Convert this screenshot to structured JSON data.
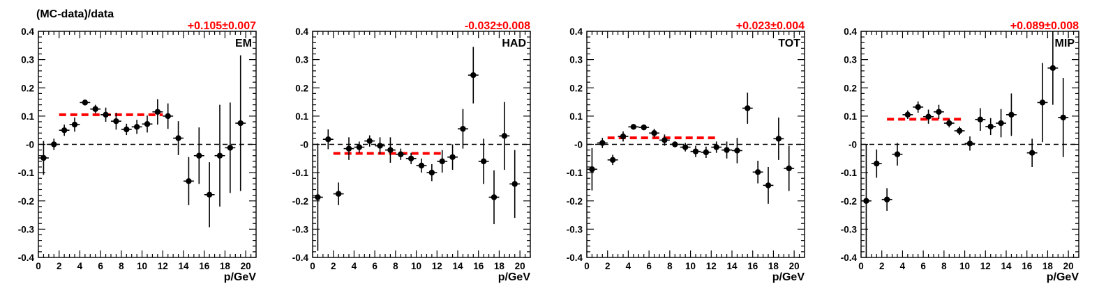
{
  "figure": {
    "ylabel": "(MC-data)/data",
    "xlabel": "p/GeV"
  },
  "chart_data": [
    {
      "type": "scatter",
      "panel_label": "EM",
      "fit_label": "+0.105±0.007",
      "fit": {
        "value": 0.105,
        "x_range": [
          2,
          12
        ]
      },
      "xlim": [
        0,
        21
      ],
      "ylim": [
        -0.4,
        0.4
      ],
      "xticks": [
        0,
        2,
        4,
        6,
        8,
        10,
        12,
        14,
        16,
        18,
        20
      ],
      "yticks": [
        -0.4,
        -0.3,
        -0.2,
        -0.1,
        0,
        0.1,
        0.2,
        0.3,
        0.4
      ],
      "ytick_labels": [
        "-0.4",
        "-0.3",
        "-0.2",
        "-0.1",
        "-0",
        "0.1",
        "0.2",
        "0.3",
        "0.4"
      ],
      "points": [
        {
          "x": 0.5,
          "y": -0.048,
          "err": 0.06
        },
        {
          "x": 1.5,
          "y": 0.0,
          "err": 0.02
        },
        {
          "x": 2.5,
          "y": 0.05,
          "err": 0.02
        },
        {
          "x": 3.5,
          "y": 0.07,
          "err": 0.025
        },
        {
          "x": 4.5,
          "y": 0.148,
          "err": 0.01
        },
        {
          "x": 5.5,
          "y": 0.125,
          "err": 0.015
        },
        {
          "x": 6.5,
          "y": 0.105,
          "err": 0.025
        },
        {
          "x": 7.5,
          "y": 0.082,
          "err": 0.03
        },
        {
          "x": 8.5,
          "y": 0.053,
          "err": 0.02
        },
        {
          "x": 9.5,
          "y": 0.062,
          "err": 0.025
        },
        {
          "x": 10.5,
          "y": 0.072,
          "err": 0.03
        },
        {
          "x": 11.5,
          "y": 0.115,
          "err": 0.045
        },
        {
          "x": 12.5,
          "y": 0.1,
          "err": 0.045
        },
        {
          "x": 13.5,
          "y": 0.022,
          "err": 0.06
        },
        {
          "x": 14.5,
          "y": -0.13,
          "err": 0.085
        },
        {
          "x": 15.5,
          "y": -0.04,
          "err": 0.1
        },
        {
          "x": 16.5,
          "y": -0.178,
          "err": 0.115
        },
        {
          "x": 17.5,
          "y": -0.04,
          "err": 0.18
        },
        {
          "x": 18.5,
          "y": -0.012,
          "err": 0.16
        },
        {
          "x": 19.5,
          "y": 0.075,
          "err": 0.24
        }
      ]
    },
    {
      "type": "scatter",
      "panel_label": "HAD",
      "fit_label": "-0.032±0.008",
      "fit": {
        "value": -0.032,
        "x_range": [
          2,
          12.5
        ]
      },
      "xlim": [
        0,
        21
      ],
      "ylim": [
        -0.4,
        0.4
      ],
      "xticks": [
        0,
        2,
        4,
        6,
        8,
        10,
        12,
        14,
        16,
        18,
        20
      ],
      "yticks": [
        -0.4,
        -0.3,
        -0.2,
        -0.1,
        0,
        0.1,
        0.2,
        0.3,
        0.4
      ],
      "ytick_labels": [
        "-0.4",
        "-0.3",
        "-0.2",
        "-0.1",
        "-0",
        "0.1",
        "0.2",
        "0.3",
        "0.4"
      ],
      "points": [
        {
          "x": 0.5,
          "y": -0.187,
          "err": 0.19
        },
        {
          "x": 1.5,
          "y": 0.018,
          "err": 0.035
        },
        {
          "x": 2.5,
          "y": -0.175,
          "err": 0.04
        },
        {
          "x": 3.5,
          "y": -0.015,
          "err": 0.04
        },
        {
          "x": 4.5,
          "y": -0.01,
          "err": 0.02
        },
        {
          "x": 5.5,
          "y": 0.012,
          "err": 0.02
        },
        {
          "x": 6.5,
          "y": -0.005,
          "err": 0.03
        },
        {
          "x": 7.5,
          "y": -0.02,
          "err": 0.045
        },
        {
          "x": 8.5,
          "y": -0.035,
          "err": 0.02
        },
        {
          "x": 9.5,
          "y": -0.05,
          "err": 0.02
        },
        {
          "x": 10.5,
          "y": -0.075,
          "err": 0.025
        },
        {
          "x": 11.5,
          "y": -0.1,
          "err": 0.03
        },
        {
          "x": 12.5,
          "y": -0.06,
          "err": 0.04
        },
        {
          "x": 13.5,
          "y": -0.045,
          "err": 0.045
        },
        {
          "x": 14.5,
          "y": 0.055,
          "err": 0.07
        },
        {
          "x": 15.5,
          "y": 0.245,
          "err": 0.1
        },
        {
          "x": 16.5,
          "y": -0.06,
          "err": 0.08
        },
        {
          "x": 17.5,
          "y": -0.187,
          "err": 0.095
        },
        {
          "x": 18.5,
          "y": 0.03,
          "err": 0.12
        },
        {
          "x": 19.5,
          "y": -0.14,
          "err": 0.12
        }
      ]
    },
    {
      "type": "scatter",
      "panel_label": "TOT",
      "fit_label": "+0.023±0.004",
      "fit": {
        "value": 0.023,
        "x_range": [
          2,
          12.5
        ]
      },
      "xlim": [
        0,
        21
      ],
      "ylim": [
        -0.4,
        0.4
      ],
      "xticks": [
        0,
        2,
        4,
        6,
        8,
        10,
        12,
        14,
        16,
        18,
        20
      ],
      "yticks": [
        -0.4,
        -0.3,
        -0.2,
        -0.1,
        0,
        0.1,
        0.2,
        0.3,
        0.4
      ],
      "ytick_labels": [
        "-0.4",
        "-0.3",
        "-0.2",
        "-0.1",
        "-0",
        "0.1",
        "0.2",
        "0.3",
        "0.4"
      ],
      "points": [
        {
          "x": 0.5,
          "y": -0.088,
          "err": 0.075
        },
        {
          "x": 1.5,
          "y": 0.005,
          "err": 0.018
        },
        {
          "x": 2.5,
          "y": -0.055,
          "err": 0.018
        },
        {
          "x": 3.5,
          "y": 0.028,
          "err": 0.018
        },
        {
          "x": 4.5,
          "y": 0.062,
          "err": 0.008
        },
        {
          "x": 5.5,
          "y": 0.06,
          "err": 0.008
        },
        {
          "x": 6.5,
          "y": 0.04,
          "err": 0.015
        },
        {
          "x": 7.5,
          "y": 0.015,
          "err": 0.02
        },
        {
          "x": 8.5,
          "y": 0.0,
          "err": 0.01
        },
        {
          "x": 9.5,
          "y": -0.01,
          "err": 0.015
        },
        {
          "x": 10.5,
          "y": -0.025,
          "err": 0.02
        },
        {
          "x": 11.5,
          "y": -0.028,
          "err": 0.02
        },
        {
          "x": 12.5,
          "y": -0.01,
          "err": 0.02
        },
        {
          "x": 13.5,
          "y": -0.02,
          "err": 0.03
        },
        {
          "x": 14.5,
          "y": -0.022,
          "err": 0.045
        },
        {
          "x": 15.5,
          "y": 0.128,
          "err": 0.055
        },
        {
          "x": 16.5,
          "y": -0.098,
          "err": 0.04
        },
        {
          "x": 17.5,
          "y": -0.145,
          "err": 0.065
        },
        {
          "x": 18.5,
          "y": 0.02,
          "err": 0.075
        },
        {
          "x": 19.5,
          "y": -0.085,
          "err": 0.08
        }
      ]
    },
    {
      "type": "scatter",
      "panel_label": "MIP",
      "fit_label": "+0.089±0.008",
      "fit": {
        "value": 0.089,
        "x_range": [
          2.5,
          10
        ]
      },
      "xlim": [
        0,
        21
      ],
      "ylim": [
        -0.4,
        0.4
      ],
      "xticks": [
        0,
        2,
        4,
        6,
        8,
        10,
        12,
        14,
        16,
        18,
        20
      ],
      "yticks": [
        -0.4,
        -0.3,
        -0.2,
        -0.1,
        0,
        0.1,
        0.2,
        0.3,
        0.4
      ],
      "ytick_labels": [
        "-0.4",
        "-0.3",
        "-0.2",
        "-0.1",
        "-0",
        "0.1",
        "0.2",
        "0.3",
        "0.4"
      ],
      "points": [
        {
          "x": 0.5,
          "y": -0.2,
          "err": 0.2
        },
        {
          "x": 1.5,
          "y": -0.068,
          "err": 0.05
        },
        {
          "x": 2.5,
          "y": -0.195,
          "err": 0.04
        },
        {
          "x": 3.5,
          "y": -0.035,
          "err": 0.04
        },
        {
          "x": 4.5,
          "y": 0.105,
          "err": 0.015
        },
        {
          "x": 5.5,
          "y": 0.132,
          "err": 0.02
        },
        {
          "x": 6.5,
          "y": 0.098,
          "err": 0.025
        },
        {
          "x": 7.5,
          "y": 0.115,
          "err": 0.025
        },
        {
          "x": 8.5,
          "y": 0.075,
          "err": 0.015
        },
        {
          "x": 9.5,
          "y": 0.048,
          "err": 0.015
        },
        {
          "x": 10.5,
          "y": 0.003,
          "err": 0.025
        },
        {
          "x": 11.5,
          "y": 0.088,
          "err": 0.04
        },
        {
          "x": 12.5,
          "y": 0.063,
          "err": 0.03
        },
        {
          "x": 13.5,
          "y": 0.075,
          "err": 0.05
        },
        {
          "x": 14.5,
          "y": 0.105,
          "err": 0.075
        },
        {
          "x": 16.5,
          "y": -0.03,
          "err": 0.05
        },
        {
          "x": 17.5,
          "y": 0.148,
          "err": 0.14
        },
        {
          "x": 18.5,
          "y": 0.27,
          "err": 0.13
        },
        {
          "x": 19.5,
          "y": 0.095,
          "err": 0.14
        }
      ]
    }
  ]
}
